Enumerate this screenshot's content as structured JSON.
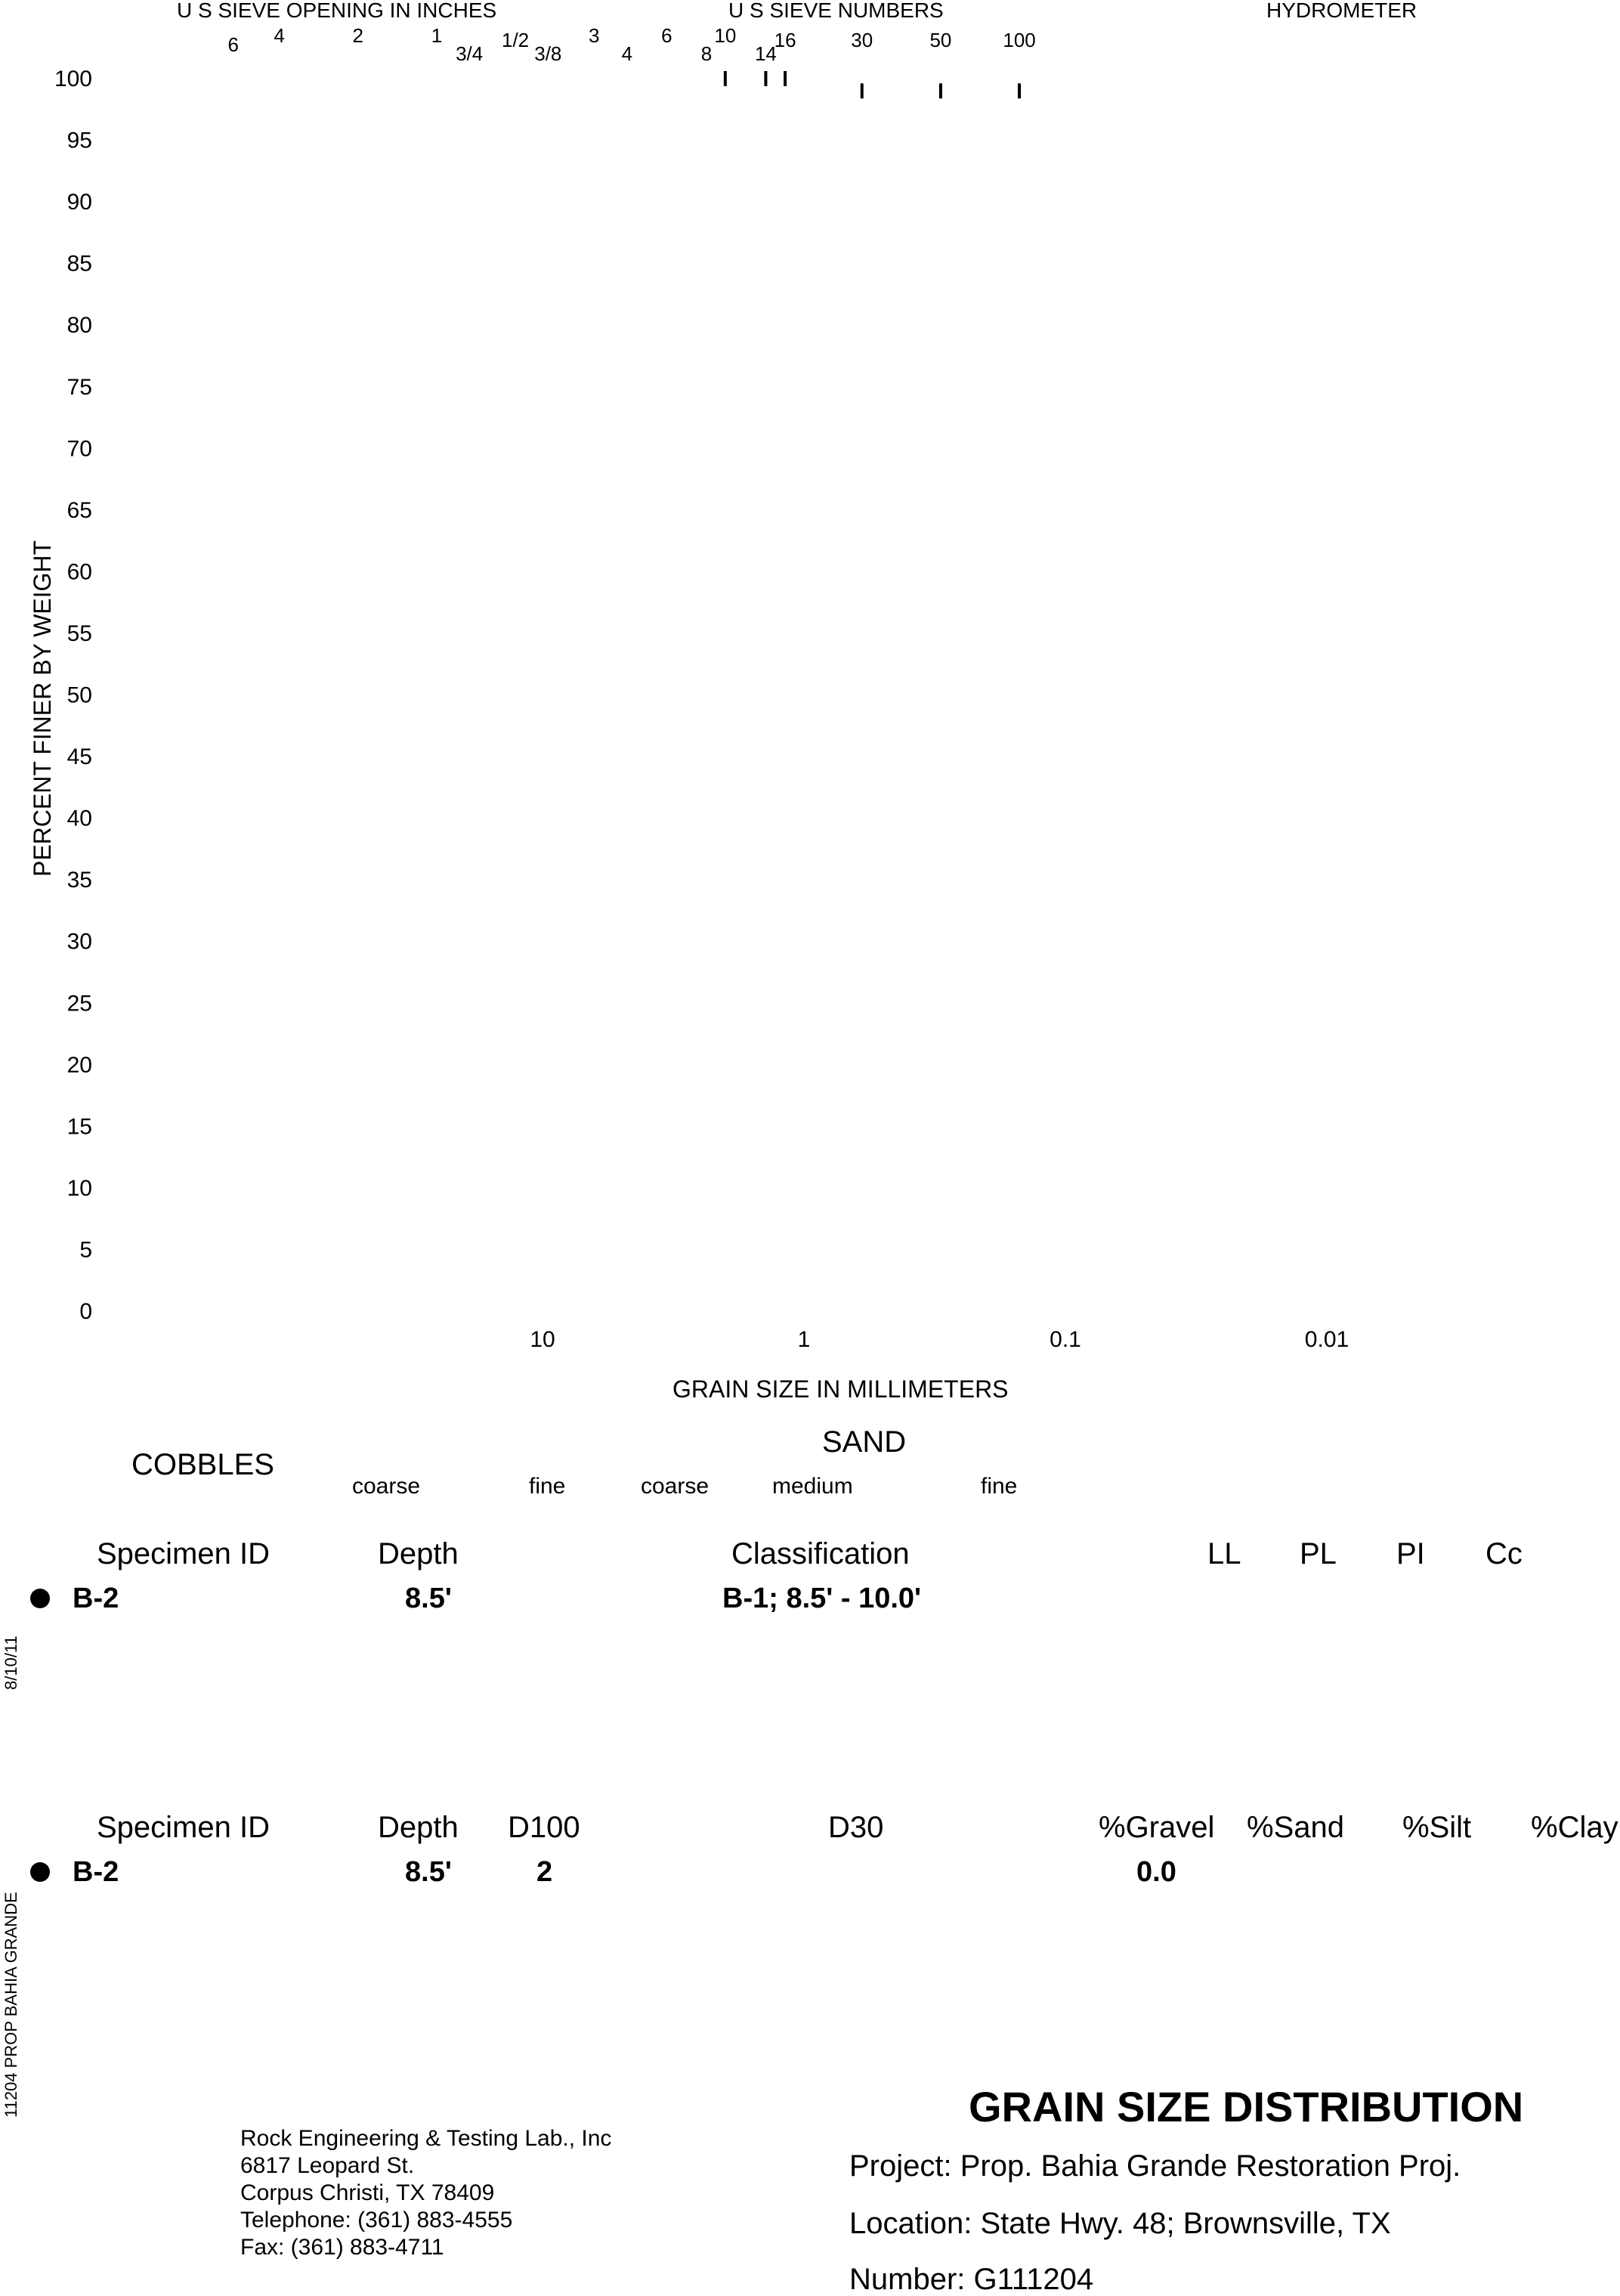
{
  "chart_data": {
    "type": "scatter",
    "title": "",
    "xlabel": "GRAIN SIZE IN MILLIMETERS",
    "ylabel": "PERCENT FINER BY WEIGHT",
    "x_scale": "log",
    "x_direction": "descending",
    "ylim": [
      0,
      100
    ],
    "y_ticks": [
      "100",
      "95",
      "90",
      "85",
      "80",
      "75",
      "70",
      "65",
      "60",
      "55",
      "50",
      "45",
      "40",
      "35",
      "30",
      "25",
      "20",
      "15",
      "10",
      "5",
      "0"
    ],
    "x_ticks": [
      {
        "value": 10,
        "label": "10"
      },
      {
        "value": 1,
        "label": "1"
      },
      {
        "value": 0.1,
        "label": "0.1"
      },
      {
        "value": 0.01,
        "label": "0.01"
      }
    ],
    "top_headers": {
      "sieve_inches": "U S  SIEVE OPENING IN INCHES",
      "sieve_numbers": "U S  SIEVE NUMBERS",
      "hydrometer": "HYDROMETER"
    },
    "sieve_labels": [
      {
        "label": "6",
        "value": 152.4
      },
      {
        "label": "4",
        "value": 101.6
      },
      {
        "label": "2",
        "value": 50.8
      },
      {
        "label": "1",
        "value": 25.4
      },
      {
        "label": "3/4",
        "value": 19.05
      },
      {
        "label": "1/2",
        "value": 12.7
      },
      {
        "label": "3/8",
        "value": 9.525
      },
      {
        "label": "3",
        "value": 6.35
      },
      {
        "label": "4",
        "value": 4.75
      },
      {
        "label": "6",
        "value": 3.35
      },
      {
        "label": "8",
        "value": 2.36
      },
      {
        "label": "10",
        "value": 2.0
      },
      {
        "label": "14",
        "value": 1.4
      },
      {
        "label": "16",
        "value": 1.18
      },
      {
        "label": "30",
        "value": 0.6
      },
      {
        "label": "50",
        "value": 0.3
      },
      {
        "label": "100",
        "value": 0.15
      }
    ],
    "series": [
      {
        "name": "",
        "points": [
          {
            "x": 2.0,
            "y": 100
          },
          {
            "x": 1.4,
            "y": 100
          },
          {
            "x": 1.18,
            "y": 100
          },
          {
            "x": 0.6,
            "y": 99
          },
          {
            "x": 0.3,
            "y": 99
          },
          {
            "x": 0.15,
            "y": 99
          }
        ]
      }
    ]
  },
  "zones": {
    "cobbles": "COBBLES",
    "sand": "SAND",
    "coarse1": "coarse",
    "fine1": "fine",
    "coarse2": "coarse",
    "medium": "medium",
    "fine2": "fine"
  },
  "table1": {
    "headers": {
      "specimen": "Specimen ID",
      "depth": "Depth",
      "classification": "Classification",
      "ll": "LL",
      "pl": "PL",
      "pi": "PI",
      "cc": "Cc"
    },
    "row": {
      "specimen": "B-2",
      "depth": "8.5'",
      "classification": "B-1; 8.5' - 10.0'"
    }
  },
  "table2": {
    "headers": {
      "specimen": "Specimen ID",
      "depth": "Depth",
      "d100": "D100",
      "d30": "D30",
      "gravel": "%Gravel",
      "sand": "%Sand",
      "silt": "%Silt",
      "clay": "%Clay"
    },
    "row": {
      "specimen": "B-2",
      "depth": "8.5'",
      "d100": "2",
      "gravel": "0.0"
    }
  },
  "side_text": {
    "date": "8/10/11",
    "file": "11204 PROP  BAHIA GRANDE"
  },
  "lab": {
    "line1": "Rock Engineering & Testing Lab., Inc",
    "line2": "6817 Leopard St.",
    "line3": "Corpus Christi, TX 78409",
    "line4": "Telephone:  (361) 883-4555",
    "line5": "Fax:  (361) 883-4711"
  },
  "report": {
    "title": "GRAIN SIZE DISTRIBUTION",
    "project": "Project:  Prop. Bahia Grande Restoration Proj.",
    "location": "Location:  State Hwy. 48; Brownsville, TX",
    "number": "Number:  G111204"
  }
}
